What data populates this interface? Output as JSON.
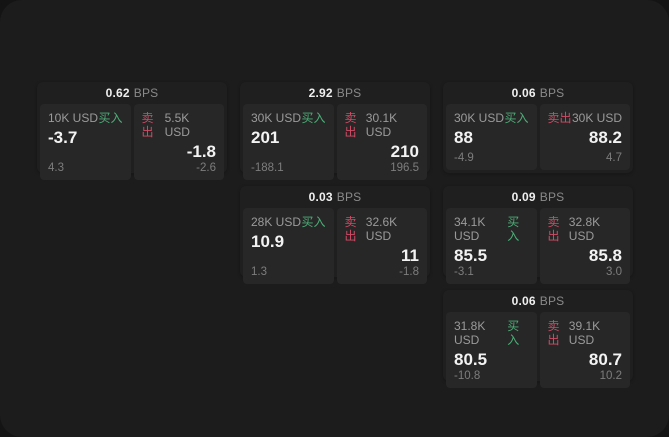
{
  "colors": {
    "outer_bg": "#141414",
    "page_bg": "#1c1c1c",
    "card_bg": "#1f1f1f",
    "panel_bg": "#272727",
    "text_primary": "#f3f3f3",
    "text_secondary": "#9b9b9b",
    "buy_green": "#4caf78",
    "sell_red": "#d14b66"
  },
  "labels": {
    "bps_unit": "BPS",
    "buy": "买入",
    "sell": "卖出"
  },
  "cards": [
    {
      "row": 1,
      "col": 1,
      "bps": "0.62",
      "buy": {
        "amount": "10K USD",
        "value": "-3.7",
        "delta": "4.3"
      },
      "sell": {
        "amount": "5.5K USD",
        "value": "-1.8",
        "delta": "-2.6"
      }
    },
    {
      "row": 1,
      "col": 2,
      "bps": "2.92",
      "buy": {
        "amount": "30K USD",
        "value": "201",
        "delta": "-188.1"
      },
      "sell": {
        "amount": "30.1K USD",
        "value": "210",
        "delta": "196.5"
      }
    },
    {
      "row": 1,
      "col": 3,
      "bps": "0.06",
      "buy": {
        "amount": "30K USD",
        "value": "88",
        "delta": "-4.9"
      },
      "sell": {
        "amount": "30K USD",
        "value": "88.2",
        "delta": "4.7"
      }
    },
    {
      "row": 2,
      "col": 2,
      "bps": "0.03",
      "buy": {
        "amount": "28K USD",
        "value": "10.9",
        "delta": "1.3"
      },
      "sell": {
        "amount": "32.6K USD",
        "value": "11",
        "delta": "-1.8"
      }
    },
    {
      "row": 2,
      "col": 3,
      "bps": "0.09",
      "buy": {
        "amount": "34.1K USD",
        "value": "85.5",
        "delta": "-3.1"
      },
      "sell": {
        "amount": "32.8K USD",
        "value": "85.8",
        "delta": "3.0"
      }
    },
    {
      "row": 3,
      "col": 3,
      "bps": "0.06",
      "buy": {
        "amount": "31.8K USD",
        "value": "80.5",
        "delta": "-10.8"
      },
      "sell": {
        "amount": "39.1K USD",
        "value": "80.7",
        "delta": "10.2"
      }
    }
  ]
}
